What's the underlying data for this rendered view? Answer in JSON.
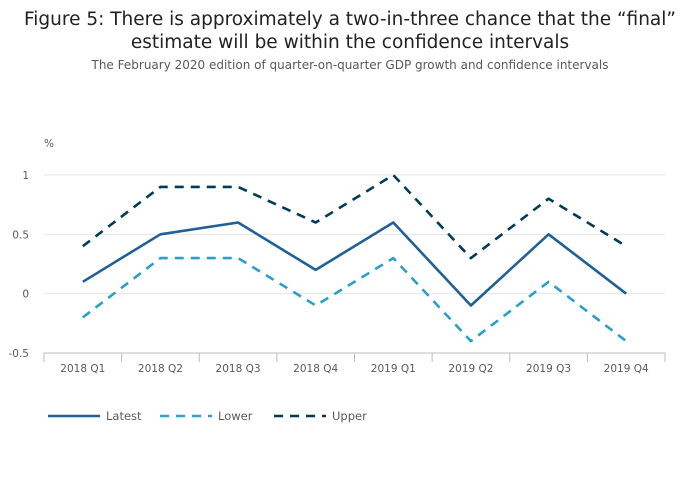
{
  "title_line1": "Figure 5: There is approximately a two-in-three chance that the “final”",
  "title_line2": "estimate will be within the confidence intervals",
  "subtitle": "The February 2020 edition of quarter-on-quarter GDP growth and confidence intervals",
  "chart_data": {
    "type": "line",
    "ylabel": "%",
    "categories": [
      "2018 Q1",
      "2018 Q2",
      "2018 Q3",
      "2018 Q4",
      "2019 Q1",
      "2019 Q2",
      "2019 Q3",
      "2019 Q4"
    ],
    "ylim": [
      -0.5,
      1
    ],
    "yticks": [
      1,
      0.5,
      0,
      -0.5
    ],
    "grid": true,
    "legend_position": "bottom-left",
    "series": [
      {
        "name": "Latest",
        "values": [
          0.1,
          0.5,
          0.6,
          0.2,
          0.6,
          -0.1,
          0.5,
          0.0
        ],
        "color": "#206095",
        "dash": "solid"
      },
      {
        "name": "Lower",
        "values": [
          -0.2,
          0.3,
          0.3,
          -0.1,
          0.3,
          -0.4,
          0.1,
          -0.4
        ],
        "color": "#27a0cc",
        "dash": "dashed"
      },
      {
        "name": "Upper",
        "values": [
          0.4,
          0.9,
          0.9,
          0.6,
          1.0,
          0.3,
          0.8,
          0.4
        ],
        "color": "#003c57",
        "dash": "dashed"
      }
    ]
  }
}
